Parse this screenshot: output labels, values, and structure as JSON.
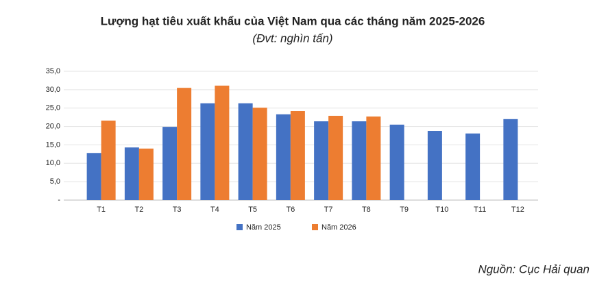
{
  "chart_data": {
    "type": "bar",
    "title": "Lượng hạt tiêu xuất khẩu của Việt Nam qua các tháng năm 2025-2026",
    "subtitle": "(Đvt: nghìn tấn)",
    "source": "Nguồn: Cục Hải quan",
    "categories": [
      "T1",
      "T2",
      "T3",
      "T4",
      "T5",
      "T6",
      "T7",
      "T8",
      "T9",
      "T10",
      "T11",
      "T12"
    ],
    "series": [
      {
        "name": "Năm 2025",
        "color": "#4472c4",
        "values": [
          12.8,
          14.3,
          19.9,
          26.3,
          26.3,
          23.3,
          21.4,
          21.4,
          20.5,
          18.8,
          18.1,
          22.0
        ]
      },
      {
        "name": "Năm 2026",
        "color": "#ed7d31",
        "values": [
          21.6,
          14.0,
          30.5,
          31.1,
          25.1,
          24.2,
          22.9,
          22.7,
          null,
          null,
          null,
          null
        ]
      }
    ],
    "ylim": [
      0,
      35
    ],
    "yticks": [
      {
        "value": 0,
        "label": "-"
      },
      {
        "value": 5,
        "label": "5,0"
      },
      {
        "value": 10,
        "label": "10,0"
      },
      {
        "value": 15,
        "label": "15,0"
      },
      {
        "value": 20,
        "label": "20,0"
      },
      {
        "value": 25,
        "label": "25,0"
      },
      {
        "value": 30,
        "label": "30,0"
      },
      {
        "value": 35,
        "label": "35,0"
      }
    ],
    "grid": true
  }
}
